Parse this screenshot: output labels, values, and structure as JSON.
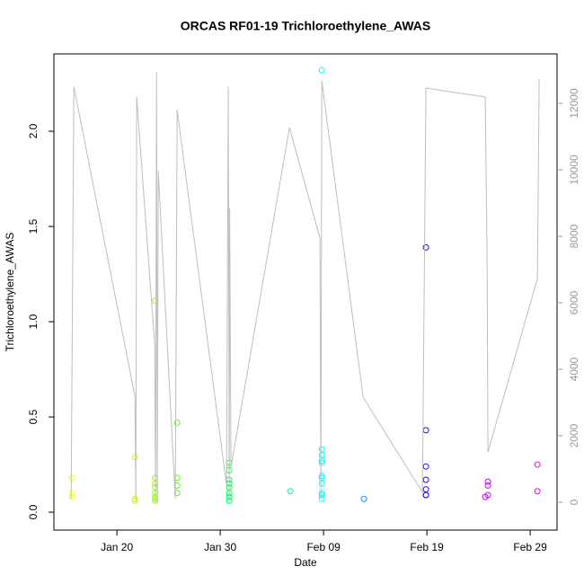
{
  "chart_data": {
    "type": "scatter",
    "title": "ORCAS RF01-19 Trichloroethylene_AWAS",
    "xlabel": "Date",
    "ylabel": "Trichloroethylene_AWAS",
    "xlim": [
      13.9,
      62.6
    ],
    "xticks": [
      {
        "value": 20,
        "label": "Jan 20"
      },
      {
        "value": 30,
        "label": "Jan 30"
      },
      {
        "value": 40,
        "label": "Feb 09"
      },
      {
        "value": 50,
        "label": "Feb 19"
      },
      {
        "value": 60,
        "label": "Feb 29"
      }
    ],
    "ylim": [
      -0.094,
      2.406
    ],
    "yticks": [
      {
        "value": 0,
        "label": "0.0"
      },
      0.5,
      {
        "value": 1,
        "label": "1.0"
      },
      1.5,
      {
        "value": 2,
        "label": "2.0"
      }
    ],
    "y2lim": [
      -838,
      13488
    ],
    "y2ticks": [
      0,
      2000,
      4000,
      6000,
      8000,
      10000,
      12000
    ],
    "series": [
      {
        "type": "scatter",
        "x": [
          15.65,
          15.65,
          15.65,
          21.74,
          21.74,
          21.74,
          23.7,
          23.7,
          23.7,
          23.7,
          23.7,
          23.7,
          23.7,
          23.7,
          25.83,
          25.83,
          25.83,
          25.83,
          30.87,
          30.87,
          30.87,
          30.87,
          30.87,
          30.87,
          30.87,
          30.87,
          36.78,
          39.83,
          39.83,
          39.83,
          39.83,
          39.83,
          39.83,
          39.83,
          39.83,
          39.83,
          39.83,
          39.83,
          43.91,
          49.91,
          49.91,
          49.91,
          49.91,
          49.91,
          49.91,
          49.91,
          55.65,
          55.91,
          55.91,
          55.91,
          60.7,
          60.7
        ],
        "values": [
          0.18,
          0.1,
          0.08,
          0.29,
          0.07,
          0.06,
          1.11,
          0.18,
          0.15,
          0.13,
          0.1,
          0.08,
          0.07,
          0.06,
          0.47,
          0.18,
          0.14,
          0.1,
          0.26,
          0.22,
          0.17,
          0.15,
          0.13,
          0.1,
          0.08,
          0.06,
          0.11,
          2.32,
          0.33,
          0.3,
          0.27,
          0.26,
          0.19,
          0.18,
          0.15,
          0.1,
          0.09,
          0.07,
          0.07,
          1.39,
          0.43,
          0.24,
          0.17,
          0.12,
          0.09,
          0.09,
          0.08,
          0.16,
          0.14,
          0.09,
          0.25,
          0.11
        ],
        "colors": [
          "#ffff00",
          "#ffff00",
          "#ffff00",
          "#ccff00",
          "#ccff00",
          "#ccff00",
          "#99ff00",
          "#99ff00",
          "#99ff00",
          "#99ff00",
          "#99ff00",
          "#99ff00",
          "#99ff00",
          "#99ff00",
          "#55ff00",
          "#55ff00",
          "#55ff00",
          "#55ff00",
          "#00ff55",
          "#00ff55",
          "#00ff55",
          "#00ff55",
          "#00ff55",
          "#00ff55",
          "#00ff55",
          "#00ff55",
          "#00ff99",
          "#00ffff",
          "#00ffff",
          "#00ffff",
          "#00ffff",
          "#00ffff",
          "#00ffff",
          "#00ffff",
          "#00ffff",
          "#00ffff",
          "#00ffff",
          "#00ffff",
          "#0099ff",
          "#3300ff",
          "#3300ff",
          "#3300ff",
          "#3300ff",
          "#3300ff",
          "#3300ff",
          "#3300ff",
          "#cc00ff",
          "#cc00ff",
          "#cc00ff",
          "#cc00ff",
          "#ff00cc",
          "#ff00cc"
        ]
      },
      {
        "type": "line",
        "axis": "y2",
        "color": "#bebebe",
        "x": [
          15.57,
          15.83,
          21.74,
          21.83,
          21.91,
          23.65,
          23.74,
          23.83,
          23.91,
          24.0,
          25.65,
          25.83,
          30.61,
          30.78,
          30.87,
          30.91,
          31.04,
          36.7,
          39.65,
          39.74,
          39.83,
          43.83,
          49.57,
          49.91,
          55.65,
          55.83,
          55.91,
          60.7,
          60.87
        ],
        "values": [
          100,
          12500,
          3200,
          0,
          12200,
          4760,
          0,
          12950,
          240,
          9970,
          110,
          11800,
          510,
          12500,
          80,
          8840,
          1050,
          11270,
          7950,
          110,
          12680,
          3160,
          300,
          12460,
          12190,
          7270,
          1510,
          6730,
          12730
        ]
      }
    ]
  }
}
